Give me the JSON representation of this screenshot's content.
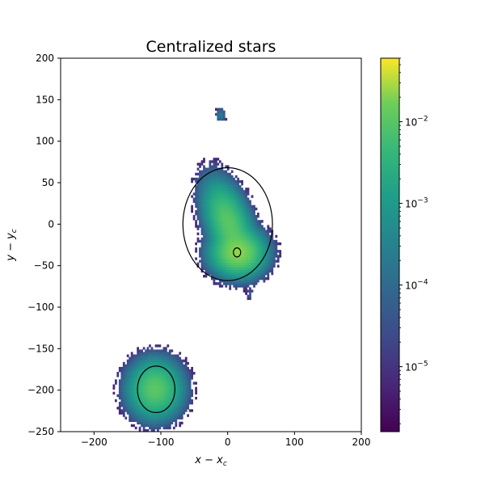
{
  "chart_data": {
    "type": "heatmap",
    "title": "Centralized stars",
    "xlabel": "x − x_c",
    "ylabel": "y − y_c",
    "xlim": [
      -250,
      200
    ],
    "ylim": [
      -250,
      200
    ],
    "xticks": [
      -200,
      -100,
      0,
      100,
      200
    ],
    "yticks": [
      200,
      150,
      100,
      50,
      0,
      -50,
      -100,
      -150,
      -200,
      -250
    ],
    "colormap": "viridis",
    "colorbar": {
      "scale": "log",
      "range": [
        1.6e-06,
        0.06
      ],
      "ticks": [
        {
          "value": 1e-05,
          "base": "10",
          "exp": "−5"
        },
        {
          "value": 0.0001,
          "base": "10",
          "exp": "−4"
        },
        {
          "value": 0.001,
          "base": "10",
          "exp": "−3"
        },
        {
          "value": 0.01,
          "base": "10",
          "exp": "−2"
        }
      ]
    },
    "density_clumps": [
      {
        "cx": 0,
        "cy": 0,
        "sx": 12,
        "sy": 22,
        "peak": 0.01,
        "angle": 28
      },
      {
        "cx": 14,
        "cy": -36,
        "sx": 16,
        "sy": 11,
        "peak": 0.02,
        "angle": 0
      },
      {
        "cx": -110,
        "cy": -200,
        "sx": 16,
        "sy": 14,
        "peak": 0.01,
        "angle": 0
      },
      {
        "cx": -12,
        "cy": 130,
        "sx": 3.5,
        "sy": 4,
        "peak": 0.0002,
        "angle": 0
      },
      {
        "cx": 32,
        "cy": -86,
        "sx": 2.5,
        "sy": 3,
        "peak": 5e-05,
        "angle": 0
      },
      {
        "cx": 50,
        "cy": -10,
        "sx": 2.5,
        "sy": 2.5,
        "peak": 4e-05,
        "angle": 0
      }
    ],
    "ellipses": [
      {
        "cx": 0,
        "cy": 0,
        "rx": 67,
        "ry": 68,
        "stroke": "#000000"
      },
      {
        "cx": 14,
        "cy": -34,
        "rx": 5.5,
        "ry": 5.5,
        "stroke": "#000000"
      },
      {
        "cx": -107,
        "cy": -199,
        "rx": 28,
        "ry": 28,
        "stroke": "#000000"
      }
    ]
  }
}
